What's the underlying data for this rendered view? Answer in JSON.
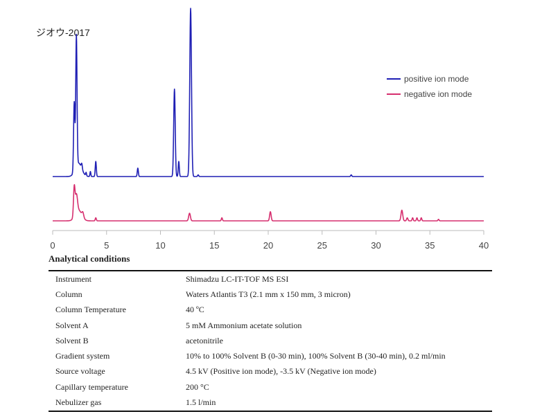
{
  "chart_data": {
    "type": "line",
    "title": "ジオウ-2017",
    "xlim": [
      0,
      40
    ],
    "x_ticks": [
      0,
      5,
      10,
      15,
      20,
      25,
      30,
      35,
      40
    ],
    "grid": false,
    "legend_position": "top-right",
    "series": [
      {
        "name": "positive ion mode",
        "color": "#1f1fb4",
        "peaks": [
          {
            "x": 2.0,
            "h": 0.41,
            "w": 0.06
          },
          {
            "x": 2.2,
            "h": 0.78,
            "w": 0.06
          },
          {
            "x": 2.4,
            "h": 0.08,
            "w": 0.3
          },
          {
            "x": 2.7,
            "h": 0.03,
            "w": 0.05
          },
          {
            "x": 3.1,
            "h": 0.02,
            "w": 0.04
          },
          {
            "x": 3.5,
            "h": 0.03,
            "w": 0.04
          },
          {
            "x": 4.0,
            "h": 0.09,
            "w": 0.05
          },
          {
            "x": 7.9,
            "h": 0.05,
            "w": 0.05
          },
          {
            "x": 11.3,
            "h": 0.52,
            "w": 0.07
          },
          {
            "x": 11.7,
            "h": 0.09,
            "w": 0.05
          },
          {
            "x": 12.8,
            "h": 1.0,
            "w": 0.08
          },
          {
            "x": 13.5,
            "h": 0.01,
            "w": 0.05
          },
          {
            "x": 27.7,
            "h": 0.01,
            "w": 0.05
          }
        ]
      },
      {
        "name": "negative ion mode",
        "color": "#d62e6e",
        "peaks": [
          {
            "x": 2.0,
            "h": 0.19,
            "w": 0.07
          },
          {
            "x": 2.2,
            "h": 0.12,
            "w": 0.1
          },
          {
            "x": 2.4,
            "h": 0.07,
            "w": 0.3
          },
          {
            "x": 2.8,
            "h": 0.03,
            "w": 0.08
          },
          {
            "x": 4.0,
            "h": 0.02,
            "w": 0.05
          },
          {
            "x": 12.7,
            "h": 0.05,
            "w": 0.08
          },
          {
            "x": 15.7,
            "h": 0.02,
            "w": 0.05
          },
          {
            "x": 20.2,
            "h": 0.06,
            "w": 0.07
          },
          {
            "x": 32.4,
            "h": 0.07,
            "w": 0.08
          },
          {
            "x": 32.9,
            "h": 0.02,
            "w": 0.06
          },
          {
            "x": 33.4,
            "h": 0.02,
            "w": 0.05
          },
          {
            "x": 33.8,
            "h": 0.02,
            "w": 0.05
          },
          {
            "x": 34.2,
            "h": 0.02,
            "w": 0.05
          },
          {
            "x": 35.8,
            "h": 0.01,
            "w": 0.05
          }
        ]
      }
    ]
  },
  "conditions": {
    "heading": "Analytical conditions",
    "rows": [
      {
        "param": "Instrument",
        "value": "Shimadzu LC-IT-TOF MS ESI"
      },
      {
        "param": "Column",
        "value": "Waters Atlantis T3 (2.1 mm x 150 mm, 3 micron)"
      },
      {
        "param": "Column Temperature",
        "value": "40 ºC"
      },
      {
        "param": "Solvent A",
        "value": "5 mM Ammonium acetate solution"
      },
      {
        "param": "Solvent B",
        "value": "acetonitrile"
      },
      {
        "param": "Gradient system",
        "value": "10% to 100% Solvent B (0-30 min), 100% Solvent B (30-40 min), 0.2 ml/min"
      },
      {
        "param": "Source voltage",
        "value": "4.5 kV (Positive ion mode), -3.5 kV (Negative ion mode)"
      },
      {
        "param": "Capillary temperature",
        "value": "200 °C"
      },
      {
        "param": "Nebulizer gas",
        "value": "1.5 l/min"
      }
    ]
  }
}
